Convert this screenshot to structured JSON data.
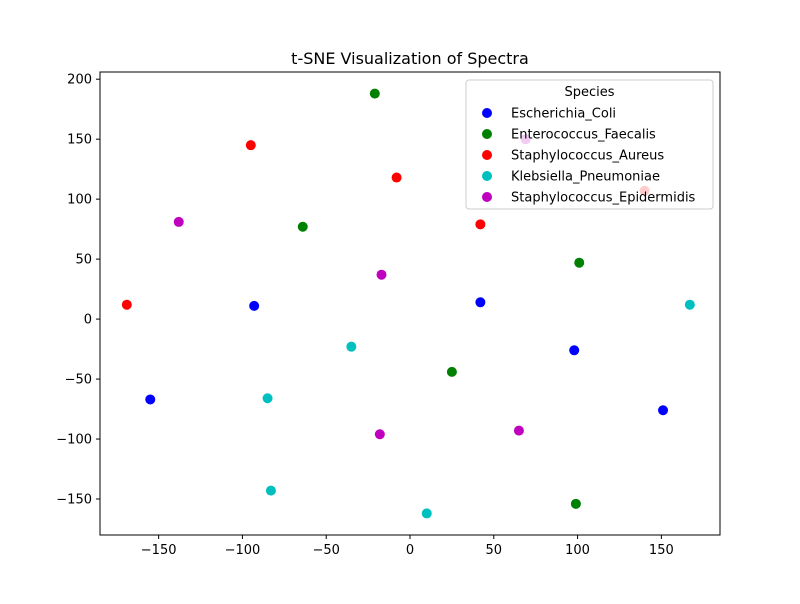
{
  "chart_data": {
    "type": "scatter",
    "title": "t-SNE Visualization of Spectra",
    "xlabel": "",
    "ylabel": "",
    "xlim": [
      -185,
      185
    ],
    "ylim": [
      -180,
      206
    ],
    "xticks": [
      -150,
      -100,
      -50,
      0,
      50,
      100,
      150
    ],
    "yticks": [
      -150,
      -100,
      -50,
      0,
      50,
      100,
      150,
      200
    ],
    "grid": false,
    "legend": {
      "title": "Species",
      "placement": "top-right"
    },
    "series": [
      {
        "name": "Escherichia_Coli",
        "color": "#0000ff",
        "points": [
          [
            -155,
            -67
          ],
          [
            -93,
            11
          ],
          [
            42,
            14
          ],
          [
            98,
            -26
          ],
          [
            151,
            -76
          ]
        ]
      },
      {
        "name": "Enterococcus_Faecalis",
        "color": "#008000",
        "points": [
          [
            -21,
            188
          ],
          [
            -64,
            77
          ],
          [
            101,
            47
          ],
          [
            25,
            -44
          ],
          [
            99,
            -154
          ]
        ]
      },
      {
        "name": "Staphylococcus_Aureus",
        "color": "#ff0000",
        "points": [
          [
            -95,
            145
          ],
          [
            -8,
            118
          ],
          [
            42,
            79
          ],
          [
            140,
            107
          ],
          [
            -169,
            12
          ]
        ]
      },
      {
        "name": "Klebsiella_Pneumoniae",
        "color": "#00bfbf",
        "points": [
          [
            167,
            12
          ],
          [
            -35,
            -23
          ],
          [
            -85,
            -66
          ],
          [
            -83,
            -143
          ],
          [
            10,
            -162
          ]
        ]
      },
      {
        "name": "Staphylococcus_Epidermidis",
        "color": "#bf00bf",
        "points": [
          [
            -138,
            81
          ],
          [
            -17,
            37
          ],
          [
            69,
            150
          ],
          [
            65,
            -93
          ],
          [
            -18,
            -96
          ]
        ]
      }
    ]
  }
}
